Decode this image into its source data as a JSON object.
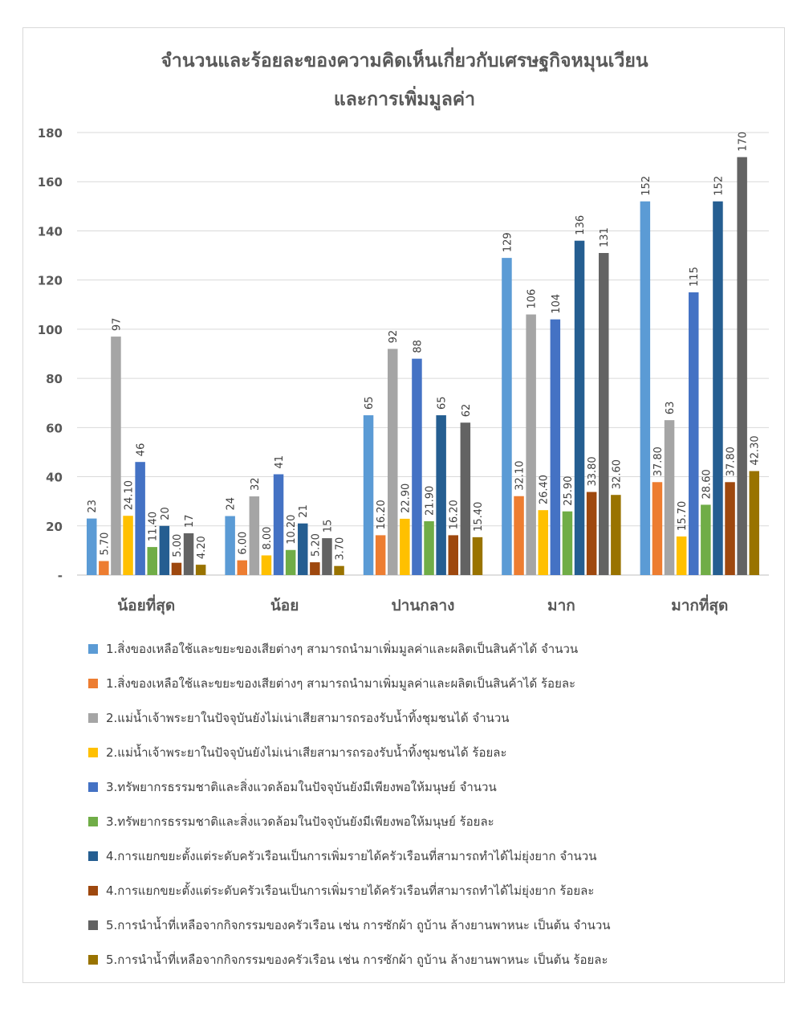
{
  "chart_data": {
    "type": "bar",
    "title_lines": [
      "จำนวนและร้อยละของความคิดเห็นเกี่ยวกับเศรษฐกิจหมุนเวียน",
      "และการเพิ่มมูลค่า"
    ],
    "categories": [
      "น้อยที่สุด",
      "น้อย",
      "ปานกลาง",
      "มาก",
      "มากที่สุด"
    ],
    "ylim": [
      0,
      180
    ],
    "yticks": [
      "-",
      "20",
      "40",
      "60",
      "80",
      "100",
      "120",
      "140",
      "160",
      "180"
    ],
    "series": [
      {
        "name": "1.สิ่งของเหลือใช้และขยะของเสียต่างๆ สามารถนำมาเพิ่มมูลค่าและผลิตเป็นสินค้าได้ จำนวน",
        "color": "#5b9bd5",
        "values": [
          23,
          24,
          65,
          129,
          152
        ],
        "labels": [
          "23",
          "24",
          "65",
          "129",
          "152"
        ]
      },
      {
        "name": "1.สิ่งของเหลือใช้และขยะของเสียต่างๆ สามารถนำมาเพิ่มมูลค่าและผลิตเป็นสินค้าได้ ร้อยละ",
        "color": "#ed7d31",
        "values": [
          5.7,
          6.0,
          16.2,
          32.1,
          37.8
        ],
        "labels": [
          "5.70",
          "6.00",
          "16.20",
          "32.10",
          "37.80"
        ]
      },
      {
        "name": "2.แม่น้ำเจ้าพระยาในปัจจุบันยังไม่เน่าเสียสามารถรองรับน้ำทิ้งชุมชนได้ จำนวน",
        "color": "#a5a5a5",
        "values": [
          97,
          32,
          92,
          106,
          63
        ],
        "labels": [
          "97",
          "32",
          "92",
          "106",
          "63"
        ]
      },
      {
        "name": "2.แม่น้ำเจ้าพระยาในปัจจุบันยังไม่เน่าเสียสามารถรองรับน้ำทิ้งชุมชนได้ ร้อยละ",
        "color": "#ffc000",
        "values": [
          24.1,
          8.0,
          22.9,
          26.4,
          15.7
        ],
        "labels": [
          "24.10",
          "8.00",
          "22.90",
          "26.40",
          "15.70"
        ]
      },
      {
        "name": "3.ทรัพยากรธรรมชาติและสิ่งแวดล้อมในปัจจุบันยังมีเพียงพอให้มนุษย์ จำนวน",
        "color": "#4472c4",
        "values": [
          46,
          41,
          88,
          104,
          115
        ],
        "labels": [
          "46",
          "41",
          "88",
          "104",
          "115"
        ]
      },
      {
        "name": "3.ทรัพยากรธรรมชาติและสิ่งแวดล้อมในปัจจุบันยังมีเพียงพอให้มนุษย์ ร้อยละ",
        "color": "#70ad47",
        "values": [
          11.4,
          10.2,
          21.9,
          25.9,
          28.6
        ],
        "labels": [
          "11.40",
          "10.20",
          "21.90",
          "25.90",
          "28.60"
        ]
      },
      {
        "name": "4.การแยกขยะตั้งแต่ระดับครัวเรือนเป็นการเพิ่มรายได้ครัวเรือนที่สามารถทำได้ไม่ยุ่งยาก จำนวน",
        "color": "#255e91",
        "values": [
          20,
          21,
          65,
          136,
          152
        ],
        "labels": [
          "20",
          "21",
          "65",
          "136",
          "152"
        ]
      },
      {
        "name": "4.การแยกขยะตั้งแต่ระดับครัวเรือนเป็นการเพิ่มรายได้ครัวเรือนที่สามารถทำได้ไม่ยุ่งยาก ร้อยละ",
        "color": "#9e480e",
        "values": [
          5.0,
          5.2,
          16.2,
          33.8,
          37.8
        ],
        "labels": [
          "5.00",
          "5.20",
          "16.20",
          "33.80",
          "37.80"
        ]
      },
      {
        "name": "5.การนำน้ำที่เหลือจากกิจกรรมของครัวเรือน เช่น การซักผ้า ถูบ้าน ล้างยานพาหนะ เป็นต้น จำนวน",
        "color": "#636363",
        "values": [
          17,
          15,
          62,
          131,
          170
        ],
        "labels": [
          "17",
          "15",
          "62",
          "131",
          "170"
        ]
      },
      {
        "name": "5.การนำน้ำที่เหลือจากกิจกรรมของครัวเรือน เช่น การซักผ้า ถูบ้าน ล้างยานพาหนะ เป็นต้น ร้อยละ",
        "color": "#997300",
        "values": [
          4.2,
          3.7,
          15.4,
          32.6,
          42.3
        ],
        "labels": [
          "4.20",
          "3.70",
          "15.40",
          "32.60",
          "42.30"
        ]
      }
    ],
    "xlabel": "",
    "ylabel": "",
    "grid": true,
    "legend_position": "bottom"
  }
}
